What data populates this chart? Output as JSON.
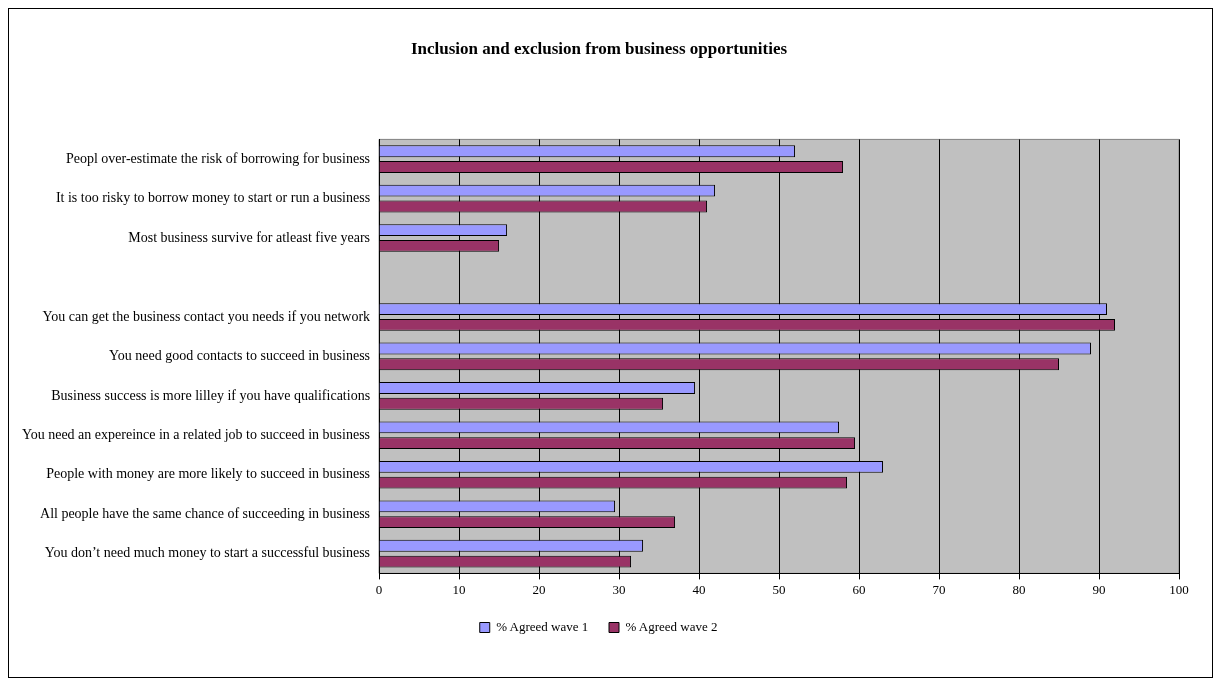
{
  "chart_data": {
    "type": "bar",
    "orientation": "horizontal",
    "title": "Inclusion and exclusion from business opportunities",
    "categories": [
      "Peopl over-estimate the risk of borrowing for business",
      "It is too risky to borrow money to start or run a business",
      "Most business survive for atleast five years",
      null,
      "You can get the business contact you needs if you network",
      "You need good contacts to succeed in business",
      "Business success is more lilley if you have qualifications",
      "You need an expereince in a related job to succeed in business",
      "People with money are more likely to succeed in business",
      "All people have the same chance of succeeding in business",
      "You don’t need much money to start a successful business"
    ],
    "series": [
      {
        "name": "% Agreed wave 1",
        "color": "#9999ff",
        "values": [
          52,
          42,
          16,
          null,
          91,
          89,
          39.5,
          57.5,
          63,
          29.5,
          33
        ]
      },
      {
        "name": "% Agreed wave 2",
        "color": "#993366",
        "values": [
          58,
          41,
          15,
          null,
          92,
          85,
          35.5,
          59.5,
          58.5,
          37,
          31.5
        ]
      }
    ],
    "xlim": [
      0,
      100
    ],
    "xticks": [
      0,
      10,
      20,
      30,
      40,
      50,
      60,
      70,
      80,
      90,
      100
    ],
    "grid": "x",
    "legend": "bottom"
  }
}
